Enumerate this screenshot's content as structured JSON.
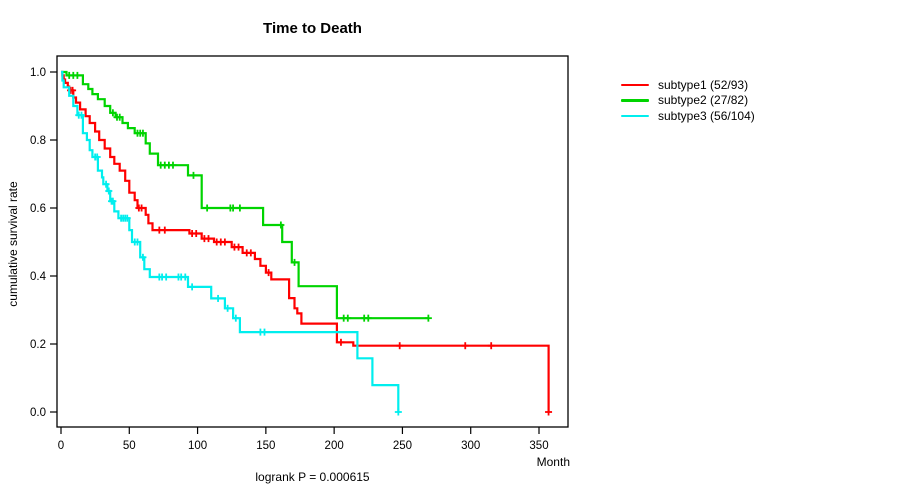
{
  "title": "Time to Death",
  "annotation": "logrank P = 0.000615",
  "axes": {
    "xlabel": "Month",
    "ylabel": "cumulative survival rate"
  },
  "chart_data": {
    "type": "line",
    "subtype": "kaplan-meier-step-function",
    "title": "Time to Death",
    "xlabel": "Month",
    "ylabel": "cumulative survival rate",
    "annotation": "logrank P = 0.000615",
    "xlim": [
      0,
      371
    ],
    "ylim": [
      0.0,
      1.0
    ],
    "xticks": [
      0,
      50,
      100,
      150,
      200,
      250,
      300,
      350
    ],
    "yticks": [
      "0.0",
      "0.2",
      "0.4",
      "0.6",
      "0.8",
      "1.0"
    ],
    "grid": false,
    "legend_position": "right",
    "axis_color": "#000000",
    "series": [
      {
        "name": "subtype1 (52/93)",
        "color": "#ff0000",
        "steps": [
          [
            0,
            1.0
          ],
          [
            1,
            0.99
          ],
          [
            2,
            0.978
          ],
          [
            3,
            0.968
          ],
          [
            5,
            0.957
          ],
          [
            6,
            0.946
          ],
          [
            9,
            0.925
          ],
          [
            11,
            0.91
          ],
          [
            14,
            0.89
          ],
          [
            18,
            0.87
          ],
          [
            21,
            0.85
          ],
          [
            25,
            0.825
          ],
          [
            28,
            0.8
          ],
          [
            32,
            0.775
          ],
          [
            36,
            0.75
          ],
          [
            39,
            0.73
          ],
          [
            43,
            0.71
          ],
          [
            47,
            0.68
          ],
          [
            50,
            0.645
          ],
          [
            54,
            0.623
          ],
          [
            56,
            0.6
          ],
          [
            62,
            0.58
          ],
          [
            64,
            0.555
          ],
          [
            67,
            0.535
          ],
          [
            94,
            0.525
          ],
          [
            103,
            0.51
          ],
          [
            112,
            0.5
          ],
          [
            125,
            0.485
          ],
          [
            133,
            0.468
          ],
          [
            142,
            0.45
          ],
          [
            146,
            0.43
          ],
          [
            150,
            0.41
          ],
          [
            154,
            0.39
          ],
          [
            167,
            0.335
          ],
          [
            171,
            0.305
          ],
          [
            173,
            0.29
          ],
          [
            176,
            0.26
          ],
          [
            202,
            0.205
          ],
          [
            214,
            0.195
          ],
          [
            357,
            0.0
          ]
        ],
        "censors": [
          [
            7,
            0.946
          ],
          [
            8.5,
            0.946
          ],
          [
            57,
            0.6
          ],
          [
            59,
            0.6
          ],
          [
            72,
            0.535
          ],
          [
            76,
            0.535
          ],
          [
            96,
            0.525
          ],
          [
            99,
            0.525
          ],
          [
            105,
            0.51
          ],
          [
            108,
            0.51
          ],
          [
            114,
            0.5
          ],
          [
            117,
            0.5
          ],
          [
            120,
            0.5
          ],
          [
            127,
            0.485
          ],
          [
            130,
            0.485
          ],
          [
            136,
            0.468
          ],
          [
            139,
            0.468
          ],
          [
            152,
            0.41
          ],
          [
            205,
            0.205
          ],
          [
            248,
            0.195
          ],
          [
            296,
            0.195
          ],
          [
            315,
            0.195
          ],
          [
            357,
            0.0
          ]
        ]
      },
      {
        "name": "subtype2 (27/82)",
        "color": "#00d400",
        "steps": [
          [
            0,
            1.0
          ],
          [
            4,
            0.99
          ],
          [
            16,
            0.964
          ],
          [
            20,
            0.95
          ],
          [
            23,
            0.935
          ],
          [
            27,
            0.92
          ],
          [
            32,
            0.9
          ],
          [
            36,
            0.88
          ],
          [
            40,
            0.867
          ],
          [
            45,
            0.85
          ],
          [
            49,
            0.835
          ],
          [
            54,
            0.82
          ],
          [
            62,
            0.79
          ],
          [
            65,
            0.76
          ],
          [
            71,
            0.726
          ],
          [
            93,
            0.696
          ],
          [
            103,
            0.6
          ],
          [
            148,
            0.55
          ],
          [
            162,
            0.5
          ],
          [
            169,
            0.44
          ],
          [
            174,
            0.37
          ],
          [
            202,
            0.276
          ],
          [
            269,
            0.276
          ]
        ],
        "censors": [
          [
            6,
            0.99
          ],
          [
            9,
            0.99
          ],
          [
            12,
            0.99
          ],
          [
            38,
            0.88
          ],
          [
            41,
            0.867
          ],
          [
            43,
            0.867
          ],
          [
            56,
            0.82
          ],
          [
            58,
            0.82
          ],
          [
            60,
            0.82
          ],
          [
            73,
            0.726
          ],
          [
            76,
            0.726
          ],
          [
            79,
            0.726
          ],
          [
            82,
            0.726
          ],
          [
            97,
            0.696
          ],
          [
            107,
            0.6
          ],
          [
            124,
            0.6
          ],
          [
            126,
            0.6
          ],
          [
            131,
            0.6
          ],
          [
            161,
            0.55
          ],
          [
            171,
            0.44
          ],
          [
            207,
            0.276
          ],
          [
            210,
            0.276
          ],
          [
            222,
            0.276
          ],
          [
            225,
            0.276
          ],
          [
            269,
            0.276
          ]
        ]
      },
      {
        "name": "subtype3 (56/104)",
        "color": "#00eeee",
        "steps": [
          [
            0,
            1.0
          ],
          [
            1,
            0.975
          ],
          [
            2,
            0.955
          ],
          [
            6,
            0.93
          ],
          [
            9,
            0.9
          ],
          [
            12,
            0.873
          ],
          [
            16,
            0.82
          ],
          [
            19,
            0.8
          ],
          [
            21,
            0.77
          ],
          [
            23,
            0.75
          ],
          [
            27,
            0.71
          ],
          [
            30,
            0.69
          ],
          [
            31,
            0.67
          ],
          [
            34,
            0.65
          ],
          [
            36,
            0.62
          ],
          [
            39,
            0.59
          ],
          [
            42,
            0.57
          ],
          [
            50,
            0.535
          ],
          [
            52,
            0.5
          ],
          [
            58,
            0.455
          ],
          [
            61,
            0.42
          ],
          [
            65,
            0.397
          ],
          [
            93,
            0.368
          ],
          [
            110,
            0.334
          ],
          [
            120,
            0.305
          ],
          [
            126,
            0.276
          ],
          [
            131,
            0.235
          ],
          [
            217,
            0.158
          ],
          [
            228,
            0.079
          ],
          [
            247,
            0.0
          ]
        ],
        "censors": [
          [
            13,
            0.873
          ],
          [
            15,
            0.873
          ],
          [
            25,
            0.75
          ],
          [
            26.5,
            0.75
          ],
          [
            33,
            0.67
          ],
          [
            35,
            0.65
          ],
          [
            37,
            0.62
          ],
          [
            38,
            0.62
          ],
          [
            44,
            0.57
          ],
          [
            45.5,
            0.57
          ],
          [
            47,
            0.57
          ],
          [
            48.5,
            0.57
          ],
          [
            54,
            0.5
          ],
          [
            56,
            0.5
          ],
          [
            60,
            0.455
          ],
          [
            72,
            0.397
          ],
          [
            74,
            0.397
          ],
          [
            77,
            0.397
          ],
          [
            86,
            0.397
          ],
          [
            88,
            0.397
          ],
          [
            91,
            0.397
          ],
          [
            96,
            0.368
          ],
          [
            115,
            0.334
          ],
          [
            122,
            0.305
          ],
          [
            128,
            0.276
          ],
          [
            146,
            0.235
          ],
          [
            149,
            0.235
          ],
          [
            247,
            0.0
          ]
        ]
      }
    ]
  }
}
